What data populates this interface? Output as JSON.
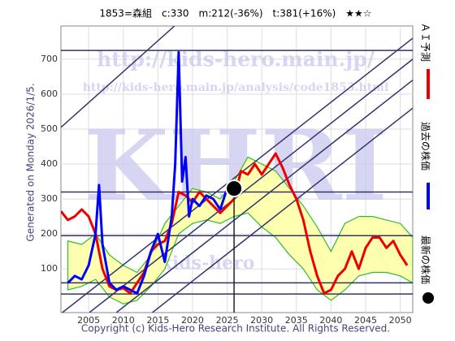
{
  "chart_data": {
    "type": "line",
    "title": "1853=森組　c:330　m:212(-36%)　t:381(+16%)　★★☆",
    "side_text": "Generated on Monday 2026/1/5.",
    "footer": "Copyright (c) Kids-Hero Research Institute. All Rights Reserved.",
    "watermarks": [
      "http://kids-hero.main.jp/",
      "http://kids-hero.main.jp/analysis/code1853.html",
      "KHRI",
      "kids-hero"
    ],
    "xlim": [
      2001,
      2051.8
    ],
    "ylim": [
      -25,
      795
    ],
    "xticks": [
      2005,
      2010,
      2015,
      2020,
      2025,
      2030,
      2035,
      2040,
      2045,
      2050
    ],
    "yticks": [
      100,
      200,
      300,
      400,
      500,
      600,
      700
    ],
    "grid": true,
    "band": {
      "color": "#ffffb0",
      "edge": "#33bb33",
      "x": [
        2002,
        2004,
        2006,
        2008,
        2010,
        2012,
        2014,
        2016,
        2018,
        2020,
        2022,
        2024,
        2026,
        2028,
        2030,
        2032,
        2034,
        2036,
        2038,
        2040,
        2042,
        2044,
        2046,
        2048,
        2050,
        2051.8
      ],
      "upper": [
        180,
        170,
        200,
        140,
        110,
        90,
        140,
        230,
        280,
        330,
        320,
        300,
        350,
        420,
        400,
        380,
        330,
        280,
        220,
        150,
        230,
        250,
        250,
        240,
        230,
        190
      ],
      "lower": [
        40,
        50,
        70,
        20,
        0,
        10,
        50,
        100,
        200,
        230,
        240,
        230,
        250,
        260,
        220,
        190,
        140,
        100,
        40,
        10,
        40,
        80,
        90,
        90,
        80,
        60
      ]
    },
    "trend_lines": {
      "color": "#33336b",
      "lines": [
        {
          "x": [
            2001,
            2017.4
          ],
          "y": [
            505,
            795
          ]
        },
        {
          "x": [
            2001.2,
            2051.8
          ],
          "y": [
            -25,
            760
          ]
        },
        {
          "x": [
            2005.1,
            2051.8
          ],
          "y": [
            -25,
            700
          ]
        },
        {
          "x": [
            2009,
            2051.8
          ],
          "y": [
            -25,
            640
          ]
        },
        {
          "x": [
            2014.2,
            2051.8
          ],
          "y": [
            -25,
            560
          ]
        }
      ]
    },
    "hlines": {
      "color": "#33336b",
      "values": [
        725,
        320,
        195,
        60,
        28
      ]
    },
    "series": [
      {
        "name": "ＡＩ予測",
        "color": "#ee0000",
        "x": [
          2001,
          2002,
          2003,
          2004,
          2005,
          2006,
          2007,
          2008,
          2009,
          2010,
          2011,
          2012,
          2013,
          2014,
          2015,
          2016,
          2017,
          2018,
          2019,
          2020,
          2021,
          2022,
          2023,
          2024,
          2025,
          2026,
          2027,
          2028,
          2029,
          2030,
          2031,
          2032,
          2033,
          2034,
          2035,
          2036,
          2037,
          2038,
          2039,
          2040,
          2041,
          2042,
          2043,
          2044,
          2045,
          2046,
          2047,
          2048,
          2049,
          2050,
          2051
        ],
        "values": [
          265,
          240,
          250,
          270,
          250,
          200,
          100,
          50,
          40,
          45,
          30,
          60,
          90,
          150,
          170,
          180,
          230,
          320,
          310,
          290,
          320,
          300,
          280,
          260,
          280,
          300,
          380,
          370,
          400,
          370,
          400,
          430,
          390,
          340,
          300,
          240,
          150,
          80,
          30,
          40,
          80,
          100,
          150,
          100,
          160,
          190,
          190,
          160,
          180,
          140,
          110
        ]
      },
      {
        "name": "過去の株価",
        "color": "#0000ff",
        "x": [
          2002,
          2003,
          2004,
          2005,
          2006,
          2006.5,
          2007,
          2008,
          2009,
          2010,
          2011,
          2012,
          2013,
          2014,
          2015,
          2016,
          2017,
          2017.5,
          2018,
          2018.5,
          2019,
          2019.5,
          2020,
          2021,
          2022,
          2023,
          2024,
          2025,
          2026
        ],
        "values": [
          60,
          80,
          70,
          110,
          200,
          340,
          170,
          60,
          40,
          50,
          40,
          30,
          80,
          150,
          200,
          120,
          250,
          400,
          720,
          350,
          420,
          250,
          300,
          280,
          310,
          300,
          270,
          330,
          330
        ]
      }
    ],
    "latest": {
      "name": "最新の株価",
      "x": 2026,
      "value": 330
    }
  }
}
